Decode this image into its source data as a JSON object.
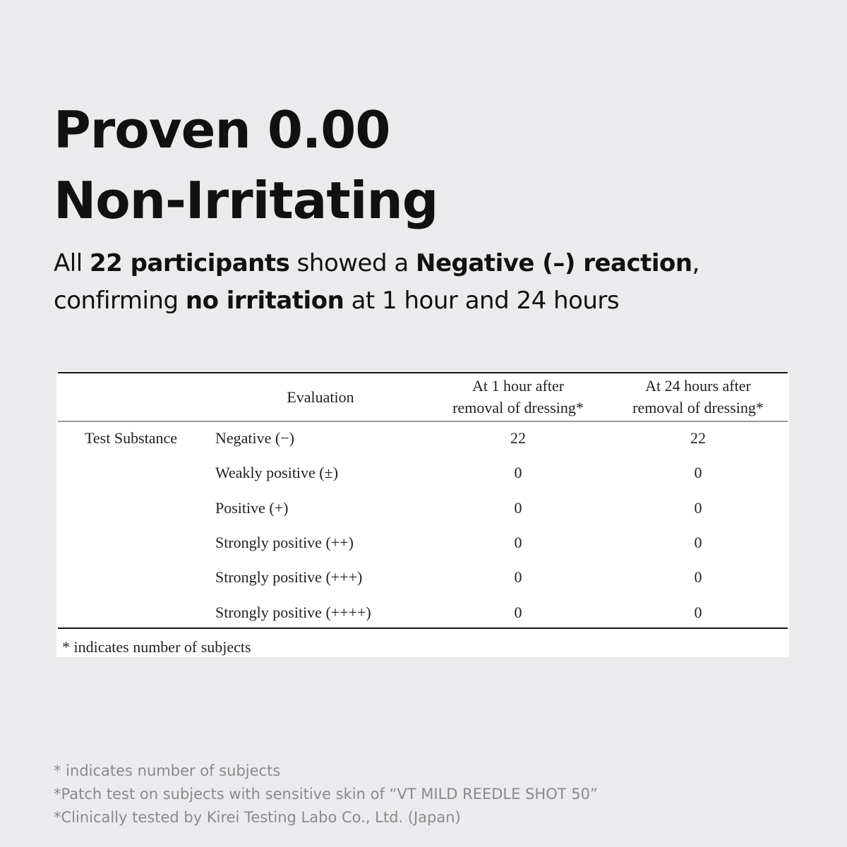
{
  "title": [
    "Proven 0.00",
    "Non-Irritating"
  ],
  "subtitle": [
    [
      {
        "text": "All ",
        "bold": false
      },
      {
        "text": "22 participants",
        "bold": true
      },
      {
        "text": " showed a ",
        "bold": false
      },
      {
        "text": "Negative (–) reaction",
        "bold": true
      },
      {
        "text": ",",
        "bold": false
      }
    ],
    [
      {
        "text": "confirming ",
        "bold": false
      },
      {
        "text": "no irritation",
        "bold": true
      },
      {
        "text": " at 1 hour and 24 hours",
        "bold": false
      }
    ]
  ],
  "table": {
    "headers": [
      [
        "Evaluation"
      ],
      [
        "At 1 hour after",
        "removal of dressing*"
      ],
      [
        "At 24 hours after",
        "removal of dressing*"
      ]
    ],
    "group_label": "Test Substance",
    "rows": [
      [
        "Negative (−)",
        22,
        22
      ],
      [
        "Weakly positive (±)",
        0,
        0
      ],
      [
        "Positive (+)",
        0,
        0
      ],
      [
        "Strongly positive (++)",
        0,
        0
      ],
      [
        "Strongly positive (+++)",
        0,
        0
      ],
      [
        "Strongly positive (++++)",
        0,
        0
      ]
    ],
    "note": "* indicates number of subjects"
  },
  "footnotes": [
    "* indicates number of subjects",
    "*Patch test on subjects with sensitive skin of “VT MILD REEDLE SHOT 50”",
    "*Clinically tested by Kirei Testing Labo Co., Ltd. (Japan)"
  ]
}
